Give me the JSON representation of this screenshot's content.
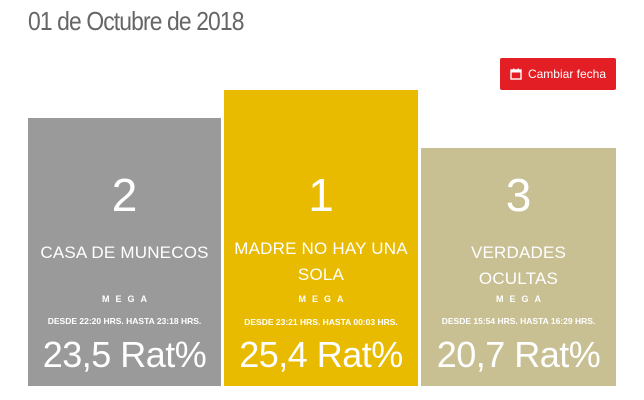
{
  "header": {
    "date_title": "01 de Octubre de 2018",
    "change_date_label": "Cambiar fecha",
    "change_date_icon": "calendar-icon"
  },
  "colors": {
    "button_red": "#e31e24",
    "first_place": "#e8bb00",
    "second_place": "#9a9a9a",
    "third_place": "#c8bf93"
  },
  "ranking": [
    {
      "rank": "2",
      "program": "CASA DE MUNECOS",
      "channel": "MEGA",
      "time_range": "DESDE 22:20 HRS. HASTA 23:18 HRS.",
      "rating": "23,5 Rat%"
    },
    {
      "rank": "1",
      "program": "MADRE NO HAY UNA SOLA",
      "channel": "MEGA",
      "time_range": "DESDE 23:21 HRS. HASTA 00:03 HRS.",
      "rating": "25,4 Rat%"
    },
    {
      "rank": "3",
      "program": "VERDADES OCULTAS",
      "channel": "MEGA",
      "time_range": "DESDE 15:54 HRS. HASTA 16:29 HRS.",
      "rating": "20,7 Rat%"
    }
  ]
}
